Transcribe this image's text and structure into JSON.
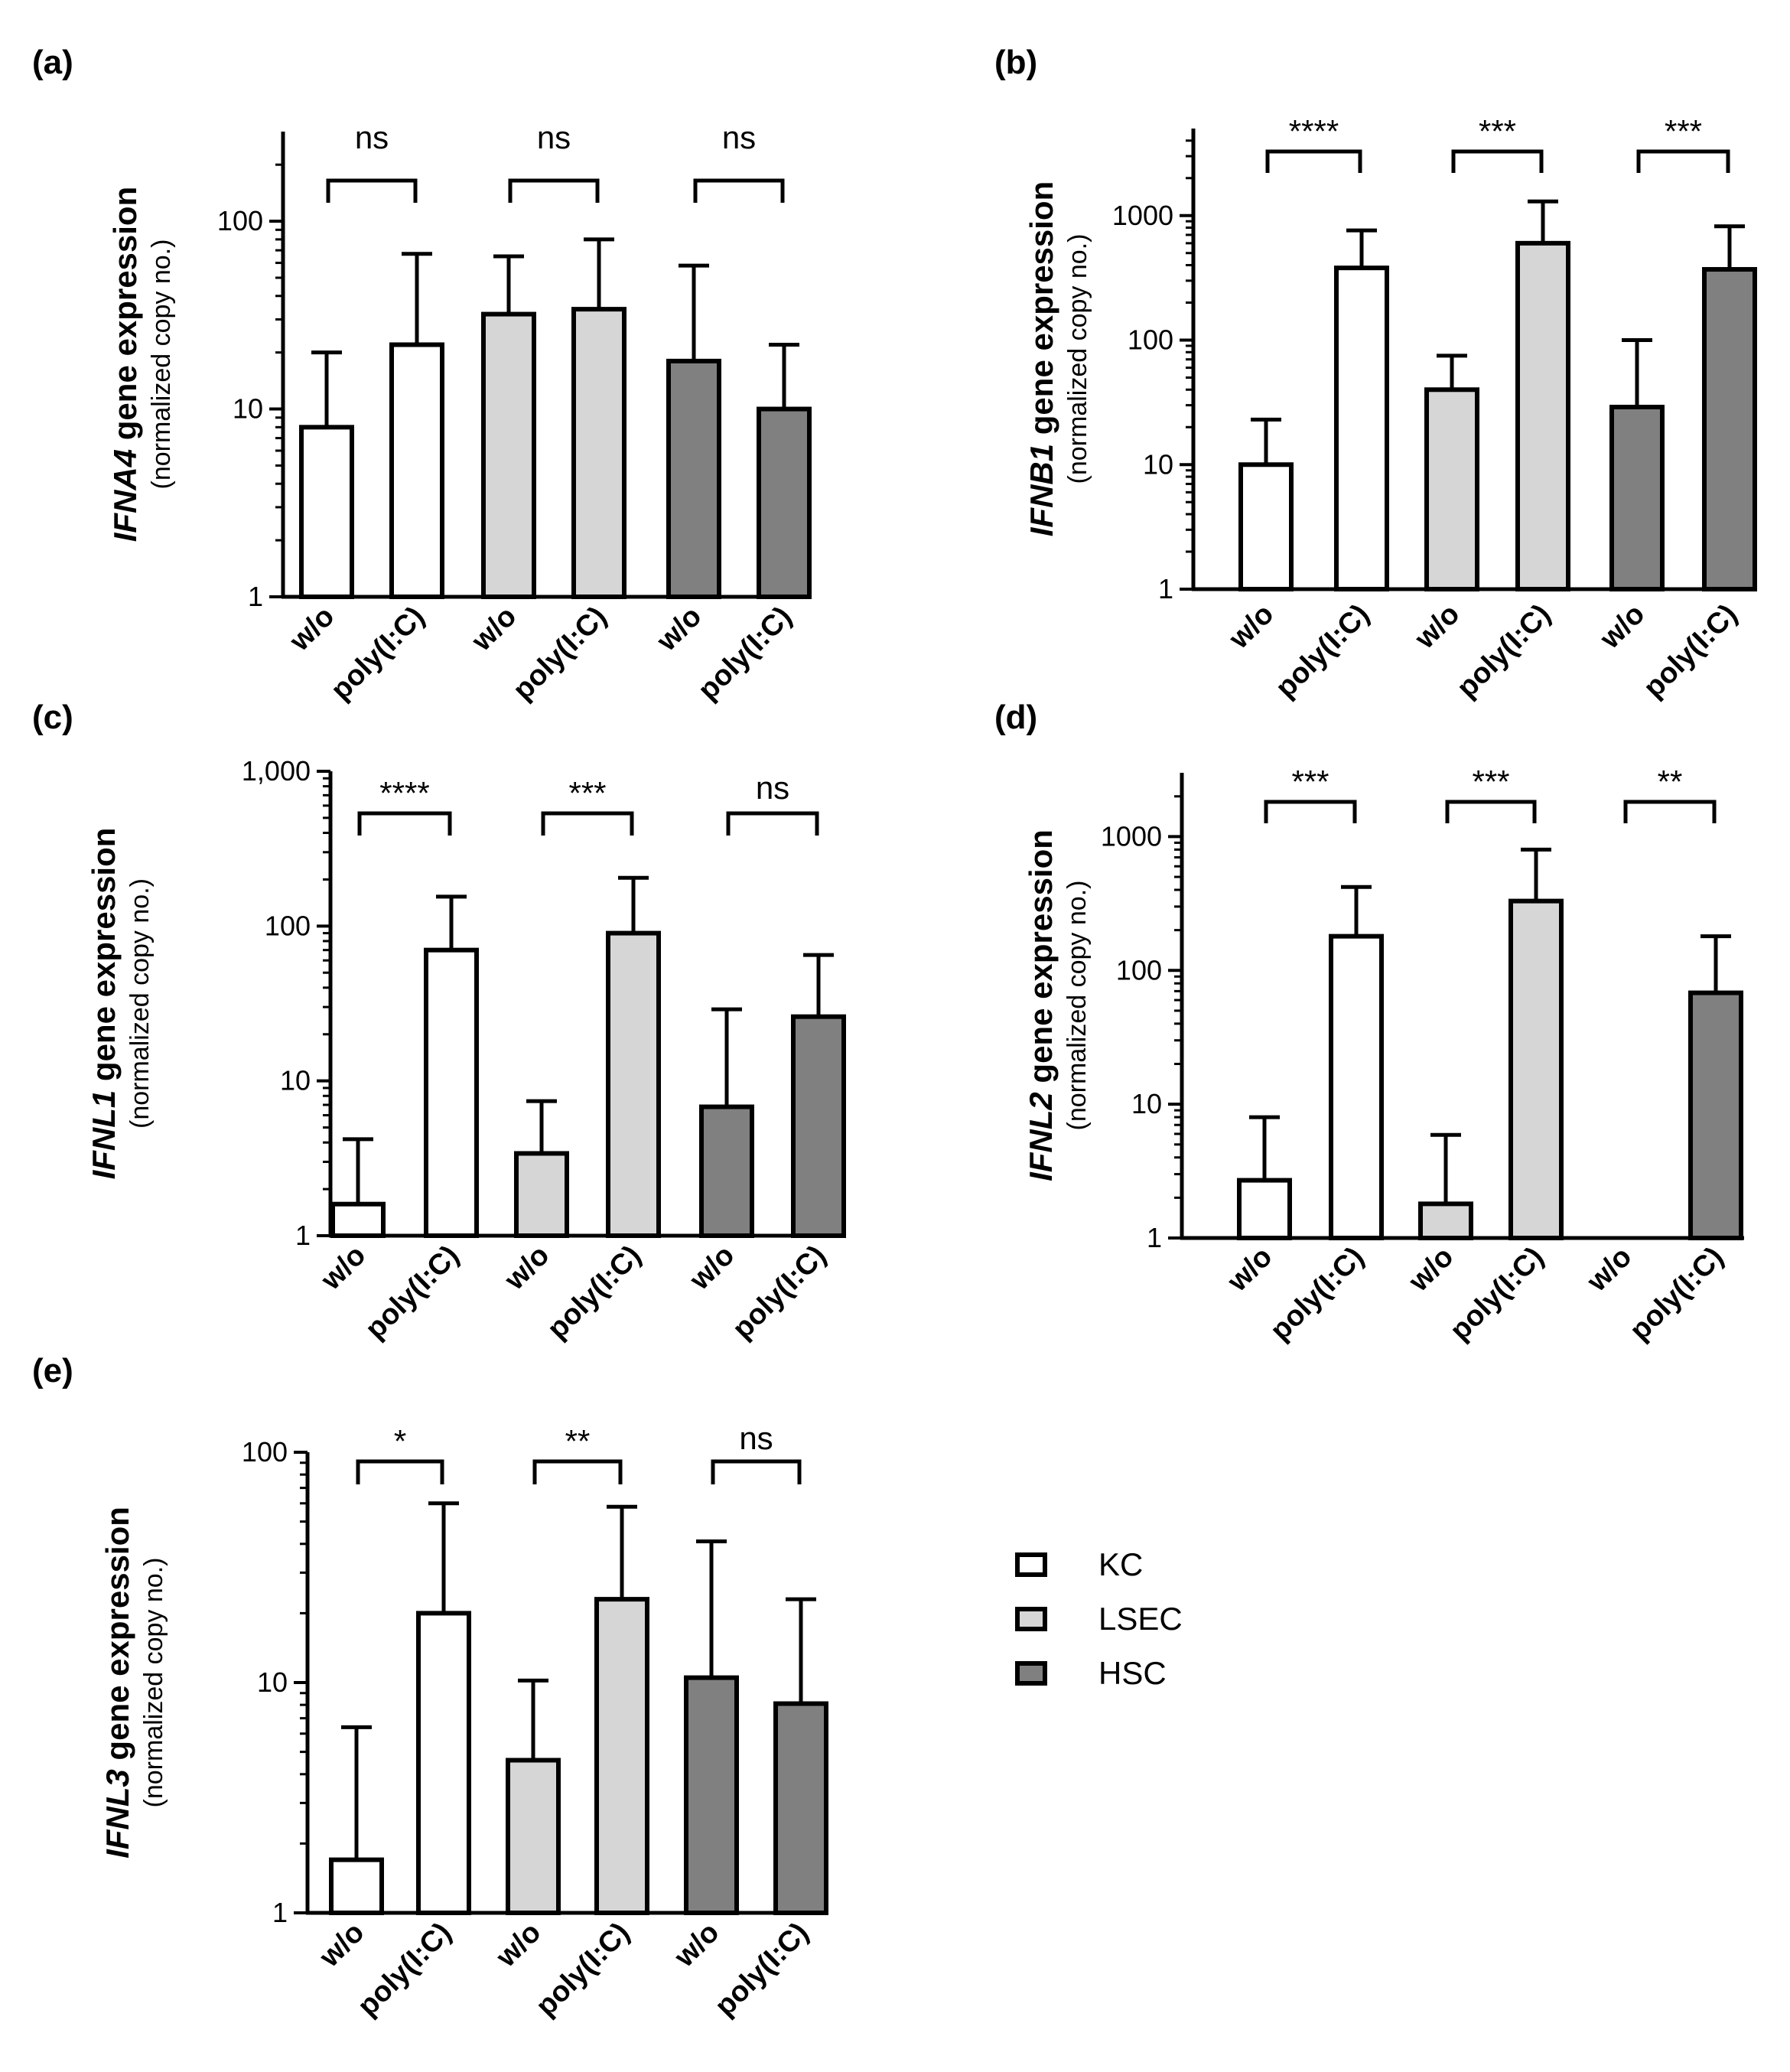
{
  "legend": [
    {
      "label": "KC",
      "color": "#ffffff"
    },
    {
      "label": "LSEC",
      "color": "#d6d6d6"
    },
    {
      "label": "HSC",
      "color": "#808080"
    }
  ],
  "chart_data": [
    {
      "type": "bar",
      "panel": "(a)",
      "gene": "IFNA4",
      "ylabel_rest": " gene expression",
      "ylabel_sub": "(normalized copy no.)",
      "yscale": "log",
      "ylim": [
        1,
        300
      ],
      "yticks": [
        1,
        10,
        100
      ],
      "ytick_labels": [
        "1",
        "10",
        "100"
      ],
      "categories": [
        "w/o",
        "poly(I:C)",
        "w/o",
        "poly(I:C)",
        "w/o",
        "poly(I:C)"
      ],
      "groups": [
        "KC",
        "KC",
        "LSEC",
        "LSEC",
        "HSC",
        "HSC"
      ],
      "values": [
        8,
        22,
        32,
        34,
        18,
        10
      ],
      "error_upper": [
        20,
        67,
        65,
        80,
        58,
        22
      ],
      "significance": [
        "ns",
        "ns",
        "ns"
      ]
    },
    {
      "type": "bar",
      "panel": "(b)",
      "gene": "IFNB1",
      "ylabel_rest": " gene expression",
      "ylabel_sub": "(normalized copy no.)",
      "yscale": "log",
      "ylim": [
        1,
        5000
      ],
      "yticks": [
        1,
        10,
        100,
        1000
      ],
      "ytick_labels": [
        "1",
        "10",
        "100",
        "1000"
      ],
      "categories": [
        "w/o",
        "poly(I:C)",
        "w/o",
        "poly(I:C)",
        "w/o",
        "poly(I:C)"
      ],
      "groups": [
        "KC",
        "KC",
        "LSEC",
        "LSEC",
        "HSC",
        "HSC"
      ],
      "values": [
        10,
        380,
        40,
        600,
        29,
        370
      ],
      "error_upper": [
        23,
        760,
        75,
        1300,
        100,
        820
      ],
      "significance": [
        "****",
        "***",
        "***"
      ]
    },
    {
      "type": "bar",
      "panel": "(c)",
      "gene": "IFNL1",
      "ylabel_rest": " gene expression",
      "ylabel_sub": "(normalized copy no.)",
      "yscale": "log",
      "ylim": [
        1,
        1000
      ],
      "yticks": [
        1,
        10,
        100,
        1000
      ],
      "ytick_labels": [
        "1",
        "10",
        "100",
        "1,000"
      ],
      "categories": [
        "w/o",
        "poly(I:C)",
        "w/o",
        "poly(I:C)",
        "w/o",
        "poly(I:C)"
      ],
      "groups": [
        "KC",
        "KC",
        "LSEC",
        "LSEC",
        "HSC",
        "HSC"
      ],
      "values": [
        1.6,
        70,
        3.4,
        90,
        6.8,
        26
      ],
      "error_upper": [
        4.2,
        155,
        7.4,
        205,
        29,
        65
      ],
      "significance": [
        "****",
        "***",
        "ns"
      ]
    },
    {
      "type": "bar",
      "panel": "(d)",
      "gene": "IFNL2",
      "ylabel_rest": " gene expression",
      "ylabel_sub": "(normalized copy no.)",
      "yscale": "log",
      "ylim": [
        1,
        3000
      ],
      "yticks": [
        1,
        10,
        100,
        1000
      ],
      "ytick_labels": [
        "1",
        "10",
        "100",
        "1000"
      ],
      "categories": [
        "w/o",
        "poly(I:C)",
        "w/o",
        "poly(I:C)",
        "w/o",
        "poly(I:C)"
      ],
      "groups": [
        "KC",
        "KC",
        "LSEC",
        "LSEC",
        "HSC",
        "HSC"
      ],
      "values": [
        2.7,
        180,
        1.8,
        330,
        null,
        68
      ],
      "error_upper": [
        8,
        420,
        5.9,
        800,
        null,
        180
      ],
      "significance": [
        "***",
        "***",
        "**"
      ]
    },
    {
      "type": "bar",
      "panel": "(e)",
      "gene": "IFNL3",
      "ylabel_rest": " gene expression",
      "ylabel_sub": "(normalized copy no.)",
      "yscale": "log",
      "ylim": [
        1,
        100
      ],
      "yticks": [
        1,
        10,
        100
      ],
      "ytick_labels": [
        "1",
        "10",
        "100"
      ],
      "categories": [
        "w/o",
        "poly(I:C)",
        "w/o",
        "poly(I:C)",
        "w/o",
        "poly(I:C)"
      ],
      "groups": [
        "KC",
        "KC",
        "LSEC",
        "LSEC",
        "HSC",
        "HSC"
      ],
      "values": [
        1.7,
        20,
        4.6,
        23,
        10.5,
        8.1
      ],
      "error_upper": [
        6.4,
        60,
        10.2,
        58,
        41,
        23
      ],
      "significance": [
        "*",
        "**",
        "ns"
      ]
    }
  ]
}
